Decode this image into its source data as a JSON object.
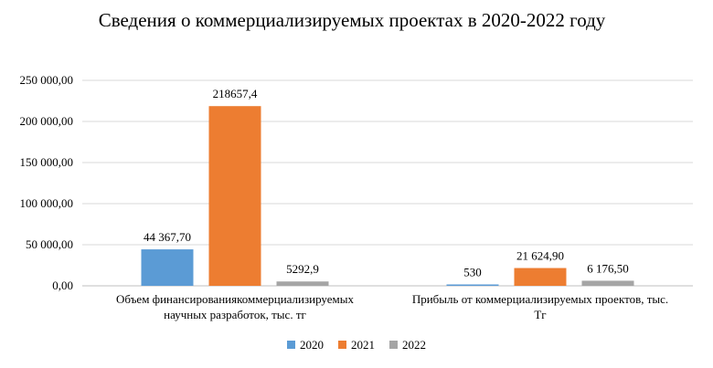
{
  "chart_data": {
    "type": "bar",
    "title": "Сведения о коммерциализируемых проектах в 2020-2022 году",
    "categories": [
      [
        "Объем финансированиякоммерциализируемых",
        "научных разработок, тыс. тг"
      ],
      [
        "Прибыль от коммерциализируемых проектов, тыс.",
        "Тг"
      ]
    ],
    "series": [
      {
        "name": "2020",
        "color": "#5B9BD5",
        "values": [
          44367.7,
          530
        ],
        "labels": [
          "44 367,70",
          "530"
        ]
      },
      {
        "name": "2021",
        "color": "#ED7D31",
        "values": [
          218657.4,
          21624.9
        ],
        "labels": [
          "218657,4",
          "21 624,90"
        ]
      },
      {
        "name": "2022",
        "color": "#A5A5A5",
        "values": [
          5292.9,
          6176.5
        ],
        "labels": [
          "5292,9",
          "6 176,50"
        ]
      }
    ],
    "yticks": [
      "0,00",
      "50 000,00",
      "100 000,00",
      "150 000,00",
      "200 000,00",
      "250 000,00"
    ],
    "ylim": [
      0,
      250000
    ],
    "grid": true,
    "legend_position": "bottom"
  }
}
